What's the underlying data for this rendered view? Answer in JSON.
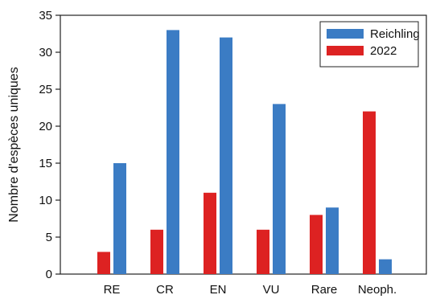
{
  "chart_data": {
    "type": "bar",
    "categories": [
      "RE",
      "CR",
      "EN",
      "VU",
      "Rare",
      "Neoph."
    ],
    "series": [
      {
        "name": "2022",
        "color": "#dd2222",
        "values": [
          3,
          6,
          11,
          6,
          8,
          22
        ]
      },
      {
        "name": "Reichling",
        "color": "#3b7cc4",
        "values": [
          15,
          33,
          32,
          23,
          9,
          2
        ]
      }
    ],
    "legend_order": [
      "Reichling",
      "2022"
    ],
    "ylabel": "Nombre d'espèces uniques",
    "xlabel": "",
    "ylim": [
      0,
      35
    ],
    "yticks": [
      0,
      5,
      10,
      15,
      20,
      25,
      30,
      35
    ],
    "grid": false,
    "legend_position": "top-right"
  }
}
